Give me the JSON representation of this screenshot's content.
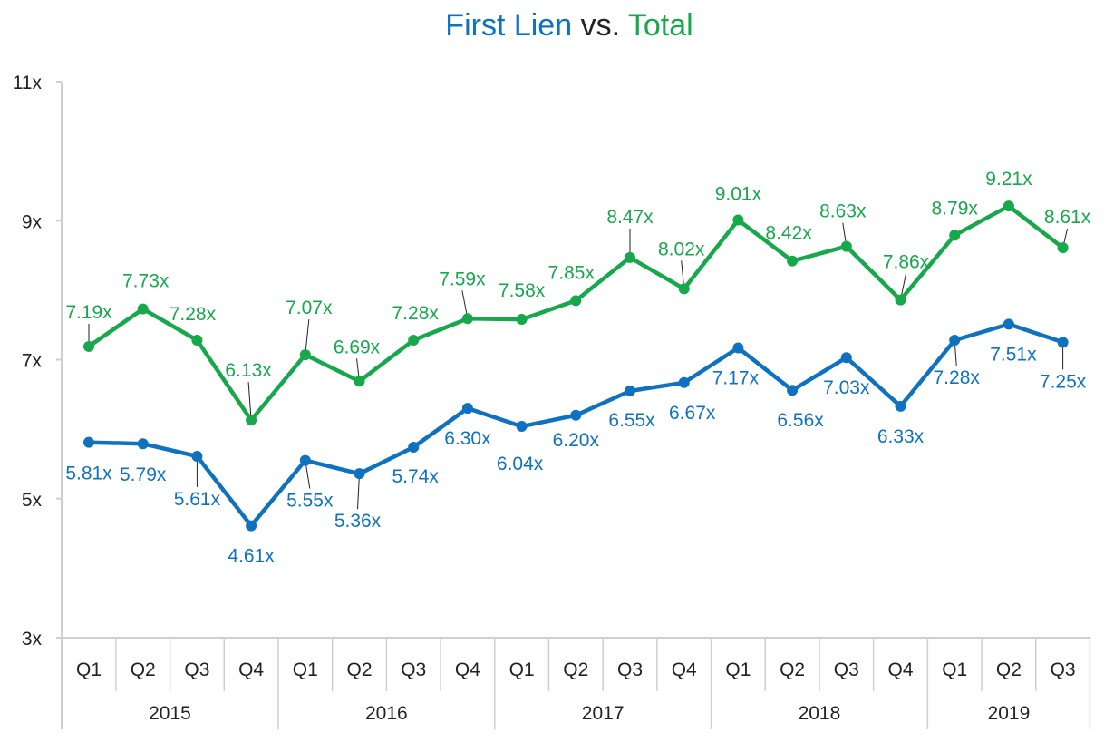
{
  "title": {
    "part1": "First Lien",
    "part2": " vs. ",
    "part3": "Total"
  },
  "colors": {
    "first_lien": "#0f72c0",
    "total": "#16a84b",
    "title_mid": "#222222",
    "axis": "#cfcfcf"
  },
  "chart_data": {
    "type": "line",
    "title": "First Lien vs. Total",
    "categories": [
      "Q1",
      "Q2",
      "Q3",
      "Q4",
      "Q1",
      "Q2",
      "Q3",
      "Q4",
      "Q1",
      "Q2",
      "Q3",
      "Q4",
      "Q1",
      "Q2",
      "Q3",
      "Q4",
      "Q1",
      "Q2",
      "Q3"
    ],
    "years": [
      {
        "label": "2015",
        "quarters": 4
      },
      {
        "label": "2016",
        "quarters": 4
      },
      {
        "label": "2017",
        "quarters": 4
      },
      {
        "label": "2018",
        "quarters": 4
      },
      {
        "label": "2019",
        "quarters": 3
      }
    ],
    "y_ticks": [
      {
        "value": 3,
        "label": "3x"
      },
      {
        "value": 5,
        "label": "5x"
      },
      {
        "value": 7,
        "label": "7x"
      },
      {
        "value": 9,
        "label": "9x"
      },
      {
        "value": 11,
        "label": "11x"
      }
    ],
    "ylim": [
      3,
      11
    ],
    "grid": false,
    "series": [
      {
        "name": "First Lien",
        "color": "#0f72c0",
        "values": [
          5.81,
          5.79,
          5.61,
          4.61,
          5.55,
          5.36,
          5.74,
          6.3,
          6.04,
          6.2,
          6.55,
          6.67,
          7.17,
          6.56,
          7.03,
          6.33,
          7.28,
          7.51,
          7.25
        ],
        "labels": [
          "5.81x",
          "5.79x",
          "5.61x",
          "4.61x",
          "5.55x",
          "5.36x",
          "5.74x",
          "6.30x",
          "6.04x",
          "6.20x",
          "6.55x",
          "6.67x",
          "7.17x",
          "6.56x",
          "7.03x",
          "6.33x",
          "7.28x",
          "7.51x",
          "7.25x"
        ]
      },
      {
        "name": "Total",
        "color": "#16a84b",
        "values": [
          7.19,
          7.73,
          7.28,
          6.13,
          7.07,
          6.69,
          7.28,
          7.59,
          7.58,
          7.85,
          8.47,
          8.02,
          9.01,
          8.42,
          8.63,
          7.86,
          8.79,
          9.21,
          8.61
        ],
        "labels": [
          "7.19x",
          "7.73x",
          "7.28x",
          "6.13x",
          "7.07x",
          "6.69x",
          "7.28x",
          "7.59x",
          "7.58x",
          "7.85x",
          "8.47x",
          "8.02x",
          "9.01x",
          "8.42x",
          "8.63x",
          "7.86x",
          "8.79x",
          "9.21x",
          "8.61x"
        ]
      }
    ]
  }
}
